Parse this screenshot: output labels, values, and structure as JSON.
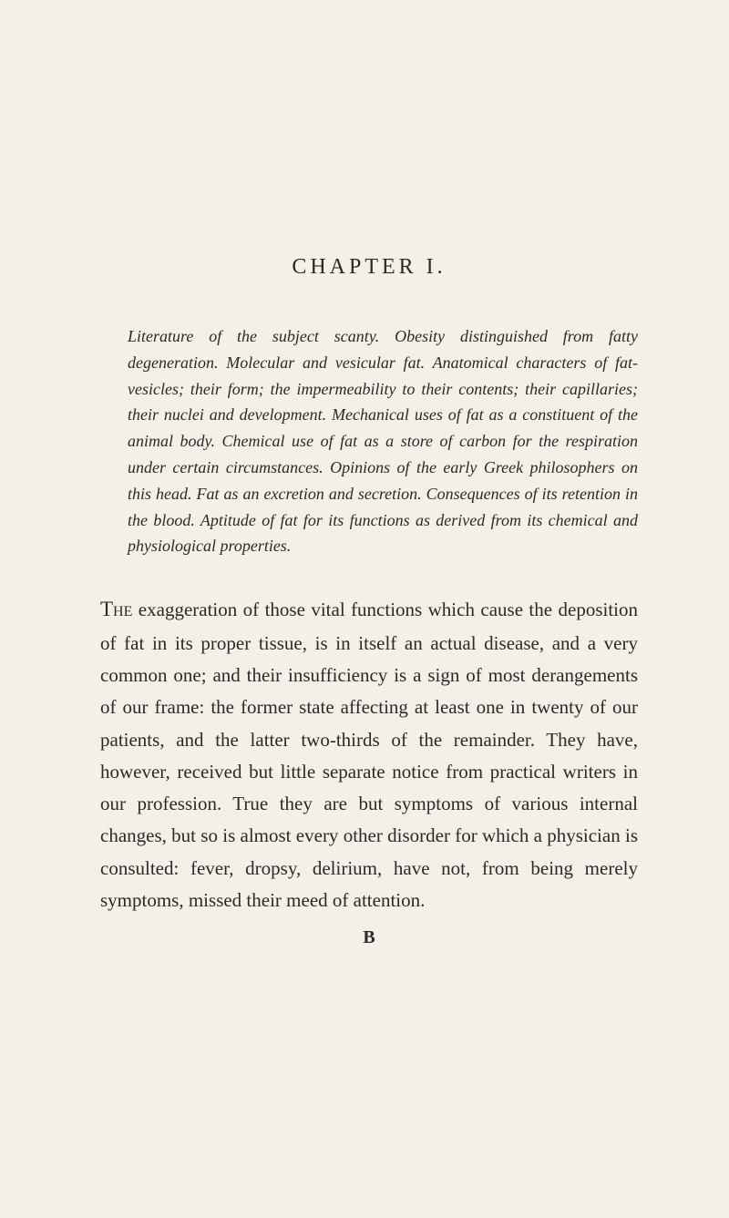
{
  "page": {
    "chapter_title": "CHAPTER I.",
    "summary": "Literature of the subject scanty. Obesity distinguished from fatty degeneration. Molecular and vesicular fat. Anatomical characters of fat-vesicles; their form; the impermeability to their contents; their capillaries; their nuclei and development. Mechanical uses of fat as a constituent of the animal body. Chemical use of fat as a store of carbon for the respiration under certain circumstances. Opinions of the early Greek philosophers on this head. Fat as an excretion and secretion. Consequences of its retention in the blood. Aptitude of fat for its functions as derived from its chemical and physiological properties.",
    "body_first_word": "The",
    "body_text": " exaggeration of those vital functions which cause the deposition of fat in its proper tissue, is in itself an actual disease, and a very common one; and their insufficiency is a sign of most derangements of our frame: the former state affecting at least one in twenty of our patients, and the latter two-thirds of the remainder. They have, however, received but little separate notice from practical writers in our profession. True they are but symptoms of various internal changes, but so is almost every other disorder for which a physician is consulted: fever, dropsy, delirium, have not, from being merely symptoms, missed their meed of attention.",
    "signature_mark": "B",
    "background_color": "#f4f0e8",
    "text_color": "#2a2a2a"
  }
}
